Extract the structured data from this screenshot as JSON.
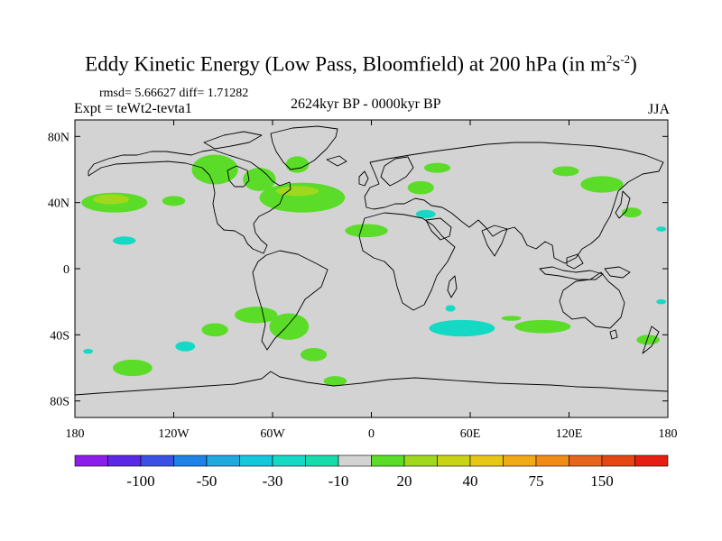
{
  "title": {
    "main": "Eddy Kinetic Energy (Low Pass, Bloomfield) at 200 hPa (in m",
    "sup1": "2",
    "mid": "s",
    "sup2": "-2",
    "end": ")"
  },
  "stats": "rmsd= 5.66627 diff= 1.71282",
  "experiment": "Expt = teWt2-tevta1",
  "period": "2624kyr BP - 0000kyr BP",
  "season": "JJA",
  "map": {
    "lon_range": [
      -180,
      180
    ],
    "lat_range": [
      -90,
      90
    ],
    "x_ticks": [
      {
        "value": -180,
        "label": "180"
      },
      {
        "value": -120,
        "label": "120W"
      },
      {
        "value": -60,
        "label": "60W"
      },
      {
        "value": 0,
        "label": "0"
      },
      {
        "value": 60,
        "label": "60E"
      },
      {
        "value": 120,
        "label": "120E"
      },
      {
        "value": 180,
        "label": "180"
      }
    ],
    "y_ticks": [
      {
        "value": 80,
        "label": "80N"
      },
      {
        "value": 40,
        "label": "40N"
      },
      {
        "value": 0,
        "label": "0"
      },
      {
        "value": -40,
        "label": "40S"
      },
      {
        "value": -80,
        "label": "80S"
      }
    ],
    "background_color": "#d3d3d3",
    "anomalies": [
      {
        "lon": -156,
        "lat": 40,
        "rx": 20,
        "ry": 6,
        "color": "#5bdc28"
      },
      {
        "lon": -158,
        "lat": 42,
        "rx": 11,
        "ry": 3,
        "color": "#a0d81e"
      },
      {
        "lon": -120,
        "lat": 41,
        "rx": 7,
        "ry": 3,
        "color": "#5bdc28"
      },
      {
        "lon": -150,
        "lat": 17,
        "rx": 7,
        "ry": 2.5,
        "color": "#14d9c4"
      },
      {
        "lon": -95,
        "lat": 60,
        "rx": 14,
        "ry": 9,
        "color": "#5bdc28"
      },
      {
        "lon": -68,
        "lat": 54,
        "rx": 10,
        "ry": 7,
        "color": "#5bdc28"
      },
      {
        "lon": -45,
        "lat": 63,
        "rx": 7,
        "ry": 5,
        "color": "#5bdc28"
      },
      {
        "lon": -42,
        "lat": 43,
        "rx": 26,
        "ry": 9,
        "color": "#5bdc28"
      },
      {
        "lon": -45,
        "lat": 47,
        "rx": 13,
        "ry": 3,
        "color": "#a0d81e"
      },
      {
        "lon": -3,
        "lat": 23,
        "rx": 13,
        "ry": 4,
        "color": "#5bdc28"
      },
      {
        "lon": 30,
        "lat": 49,
        "rx": 8,
        "ry": 4,
        "color": "#5bdc28"
      },
      {
        "lon": 33,
        "lat": 33,
        "rx": 6,
        "ry": 2.5,
        "color": "#14d9c4"
      },
      {
        "lon": 40,
        "lat": 61,
        "rx": 8,
        "ry": 3,
        "color": "#5bdc28"
      },
      {
        "lon": 118,
        "lat": 59,
        "rx": 8,
        "ry": 3,
        "color": "#5bdc28"
      },
      {
        "lon": 140,
        "lat": 51,
        "rx": 13,
        "ry": 5,
        "color": "#5bdc28"
      },
      {
        "lon": 158,
        "lat": 34,
        "rx": 6,
        "ry": 3,
        "color": "#5bdc28"
      },
      {
        "lon": 176,
        "lat": 24,
        "rx": 3,
        "ry": 1.5,
        "color": "#14d9c4"
      },
      {
        "lon": -95,
        "lat": -37,
        "rx": 8,
        "ry": 4,
        "color": "#5bdc28"
      },
      {
        "lon": -70,
        "lat": -28,
        "rx": 13,
        "ry": 5,
        "color": "#5bdc28"
      },
      {
        "lon": -50,
        "lat": -35,
        "rx": 12,
        "ry": 8,
        "color": "#5bdc28"
      },
      {
        "lon": -35,
        "lat": -52,
        "rx": 8,
        "ry": 4,
        "color": "#5bdc28"
      },
      {
        "lon": -22,
        "lat": -68,
        "rx": 7,
        "ry": 3,
        "color": "#5bdc28"
      },
      {
        "lon": -145,
        "lat": -60,
        "rx": 12,
        "ry": 5,
        "color": "#5bdc28"
      },
      {
        "lon": -113,
        "lat": -47,
        "rx": 6,
        "ry": 3,
        "color": "#14d9c4"
      },
      {
        "lon": 55,
        "lat": -36,
        "rx": 20,
        "ry": 5,
        "color": "#14d9c4"
      },
      {
        "lon": 48,
        "lat": -24,
        "rx": 3,
        "ry": 2,
        "color": "#14d9c4"
      },
      {
        "lon": 104,
        "lat": -35,
        "rx": 17,
        "ry": 4,
        "color": "#5bdc28"
      },
      {
        "lon": 85,
        "lat": -30,
        "rx": 6,
        "ry": 1.5,
        "color": "#5bdc28"
      },
      {
        "lon": 176,
        "lat": -20,
        "rx": 3,
        "ry": 1.5,
        "color": "#14d9c4"
      },
      {
        "lon": 168,
        "lat": -43,
        "rx": 7,
        "ry": 3,
        "color": "#5bdc28"
      },
      {
        "lon": -172,
        "lat": -50,
        "rx": 3,
        "ry": 1.5,
        "color": "#14d9c4"
      }
    ]
  },
  "colorbar": {
    "colors": [
      "#8c1eeb",
      "#5a28e6",
      "#3c50e6",
      "#1e82e6",
      "#1eaadc",
      "#14c8dc",
      "#14d9c4",
      "#14dcaa",
      "#d3d3d3",
      "#5bdc28",
      "#a0d81e",
      "#c8d414",
      "#e6c814",
      "#f0aa14",
      "#f08c14",
      "#e6641e",
      "#e64614",
      "#e61e14"
    ],
    "labels": [
      {
        "boundary": 2,
        "text": "-100"
      },
      {
        "boundary": 4,
        "text": "-50"
      },
      {
        "boundary": 6,
        "text": "-30"
      },
      {
        "boundary": 8,
        "text": "-10"
      },
      {
        "boundary": 10,
        "text": "20"
      },
      {
        "boundary": 12,
        "text": "40"
      },
      {
        "boundary": 14,
        "text": "75"
      },
      {
        "boundary": 16,
        "text": "150"
      }
    ]
  }
}
